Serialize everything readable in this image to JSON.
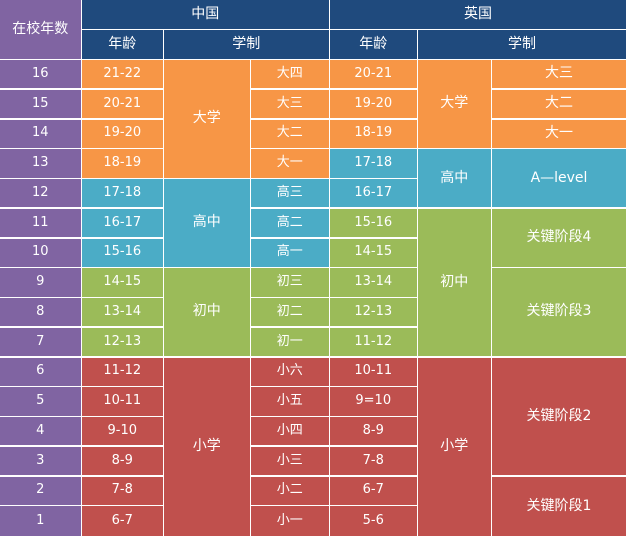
{
  "colors": {
    "header": "#1f4a7d",
    "school_years": "#8064a2",
    "text": "#ffffff",
    "grid": "#ffffff"
  },
  "chart_data": {
    "type": "table",
    "header": {
      "years_label": "在校年数",
      "china": {
        "title": "中国",
        "age_label": "年龄",
        "system_label": "学制"
      },
      "uk": {
        "title": "英国",
        "age_label": "年龄",
        "system_label": "学制"
      }
    },
    "rows": [
      {
        "year": "16",
        "china_age": "21-22",
        "china_grade": "大四",
        "uk_age": "20-21"
      },
      {
        "year": "15",
        "china_age": "20-21",
        "china_grade": "大三",
        "uk_age": "19-20"
      },
      {
        "year": "14",
        "china_age": "19-20",
        "china_grade": "大二",
        "uk_age": "18-19"
      },
      {
        "year": "13",
        "china_age": "18-19",
        "china_grade": "大一",
        "uk_age": "17-18"
      },
      {
        "year": "12",
        "china_age": "17-18",
        "china_grade": "高三",
        "uk_age": "16-17"
      },
      {
        "year": "11",
        "china_age": "16-17",
        "china_grade": "高二",
        "uk_age": "15-16"
      },
      {
        "year": "10",
        "china_age": "15-16",
        "china_grade": "高一",
        "uk_age": "14-15"
      },
      {
        "year": "9",
        "china_age": "14-15",
        "china_grade": "初三",
        "uk_age": "13-14"
      },
      {
        "year": "8",
        "china_age": "13-14",
        "china_grade": "初二",
        "uk_age": "12-13"
      },
      {
        "year": "7",
        "china_age": "12-13",
        "china_grade": "初一",
        "uk_age": "11-12"
      },
      {
        "year": "6",
        "china_age": "11-12",
        "china_grade": "小六",
        "uk_age": "10-11"
      },
      {
        "year": "5",
        "china_age": "10-11",
        "china_grade": "小五",
        "uk_age": "9=10"
      },
      {
        "year": "4",
        "china_age": "9-10",
        "china_grade": "小四",
        "uk_age": "8-9"
      },
      {
        "year": "3",
        "china_age": "8-9",
        "china_grade": "小三",
        "uk_age": "7-8"
      },
      {
        "year": "2",
        "china_age": "7-8",
        "china_grade": "小二",
        "uk_age": "6-7"
      },
      {
        "year": "1",
        "china_age": "6-7",
        "china_grade": "小一",
        "uk_age": "5-6"
      }
    ],
    "china_stages": [
      {
        "label": "大学",
        "years": [
          16,
          13
        ],
        "color": "#f79646"
      },
      {
        "label": "高中",
        "years": [
          12,
          10
        ],
        "color": "#4bacc6"
      },
      {
        "label": "初中",
        "years": [
          9,
          7
        ],
        "color": "#9bbb59"
      },
      {
        "label": "小学",
        "years": [
          6,
          1
        ],
        "color": "#c0504d"
      }
    ],
    "uk_stages": [
      {
        "label": "大学",
        "years": [
          16,
          14
        ],
        "color": "#f79646"
      },
      {
        "label": "高中",
        "years": [
          13,
          12
        ],
        "color": "#4bacc6"
      },
      {
        "label": "初中",
        "years": [
          11,
          7
        ],
        "color": "#9bbb59"
      },
      {
        "label": "小学",
        "years": [
          6,
          1
        ],
        "color": "#c0504d"
      }
    ],
    "uk_levels": [
      {
        "label": "大三",
        "years": [
          16,
          16
        ],
        "color": "#f79646"
      },
      {
        "label": "大二",
        "years": [
          15,
          15
        ],
        "color": "#f79646"
      },
      {
        "label": "大一",
        "years": [
          14,
          14
        ],
        "color": "#f79646"
      },
      {
        "label": "A—level",
        "years": [
          13,
          12
        ],
        "color": "#4bacc6"
      },
      {
        "label": "关键阶段4",
        "years": [
          11,
          10
        ],
        "color": "#9bbb59"
      },
      {
        "label": "关键阶段3",
        "years": [
          9,
          7
        ],
        "color": "#9bbb59"
      },
      {
        "label": "关键阶段2",
        "years": [
          6,
          3
        ],
        "color": "#c0504d"
      },
      {
        "label": "关键阶段1",
        "years": [
          2,
          1
        ],
        "color": "#c0504d"
      }
    ]
  }
}
